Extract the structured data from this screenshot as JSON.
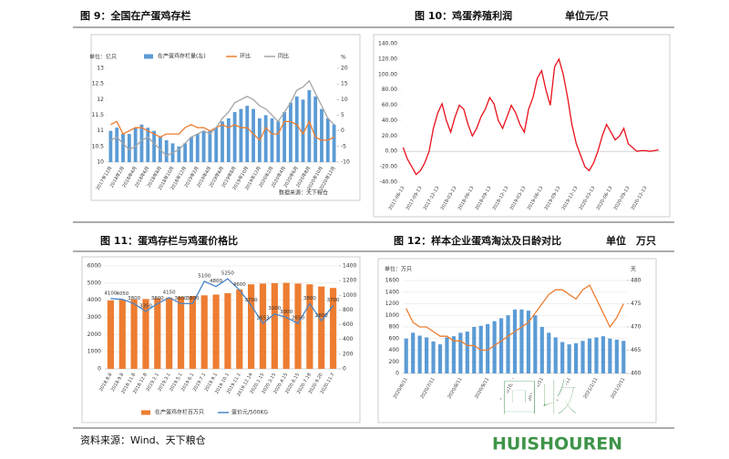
{
  "chart_data": [
    {
      "type": "combo",
      "title": "图 9：全国在产蛋鸡存栏",
      "y_unit": "单位：亿只",
      "y2_unit": "%",
      "note": "数据来源：天下粮仓",
      "legend": "top",
      "grid": false,
      "categories": [
        "2017年12月",
        null,
        "2018年2月",
        null,
        "2018年4月",
        null,
        "2018年6月",
        null,
        "2018年8月",
        null,
        "2018年10月",
        null,
        "2018年12月",
        null,
        "2019年2月",
        null,
        "2019年4月",
        null,
        "2019年6月",
        null,
        "2019年8月",
        null,
        "2019年10月",
        null,
        "2019年12月",
        null,
        "2020年2月",
        null,
        "2020年4月",
        null,
        "2020年6月",
        null,
        "2020年8月",
        null,
        "2020年10月",
        null,
        "2020年12月"
      ],
      "ylim": [
        10,
        13
      ],
      "yticks": [
        10,
        10.5,
        11,
        11.5,
        12,
        12.5,
        13
      ],
      "y2lim": [
        -10,
        20
      ],
      "y2ticks": [
        -10,
        -5,
        0,
        5,
        10,
        15,
        20
      ],
      "series": [
        {
          "name": "在产蛋鸡存栏量(左)",
          "type": "bar",
          "color": "#5b9bd5",
          "values": [
            11.0,
            11.1,
            10.9,
            10.9,
            11.1,
            11.2,
            11.1,
            11.0,
            10.8,
            10.7,
            10.6,
            10.5,
            10.6,
            10.8,
            10.9,
            11.0,
            11.0,
            11.1,
            11.3,
            11.4,
            11.6,
            11.7,
            11.8,
            11.7,
            11.4,
            11.5,
            11.4,
            11.3,
            11.6,
            11.9,
            12.1,
            12.0,
            12.3,
            12.1,
            11.7,
            11.4,
            11.2
          ]
        },
        {
          "name": "环比",
          "type": "line",
          "axis": "y2",
          "color": "#ed7d31",
          "values": [
            2,
            3,
            -1,
            0,
            1,
            1,
            0,
            -1,
            -2,
            -1,
            -1,
            -1,
            1,
            2,
            1,
            1,
            0,
            1,
            2,
            1,
            2,
            1,
            1,
            -1,
            -3,
            1,
            -1,
            -1,
            3,
            3,
            2,
            -1,
            3,
            -2,
            -3,
            -3,
            -2
          ]
        },
        {
          "name": "同比",
          "type": "line",
          "axis": "y2",
          "color": "#a5a5a5",
          "values": [
            -3,
            -2,
            -4,
            -6,
            -5,
            -3,
            -2,
            -4,
            -6,
            -8,
            -7,
            -6,
            -4,
            -2,
            -1,
            0,
            -1,
            1,
            4,
            6,
            9,
            10,
            11,
            10,
            8,
            7,
            5,
            3,
            6,
            9,
            13,
            14,
            16,
            12,
            8,
            4,
            2
          ]
        }
      ]
    },
    {
      "type": "line",
      "title": "图 10：鸡蛋养殖利润",
      "subtitle": "单位元/只",
      "grid": false,
      "categories": [
        "2017-06-13",
        null,
        null,
        null,
        "2017-09-13",
        null,
        null,
        null,
        "2017-12-13",
        null,
        null,
        null,
        "2018-03-13",
        null,
        null,
        null,
        "2018-06-13",
        null,
        null,
        null,
        "2018-09-13",
        null,
        null,
        null,
        "2018-12-13",
        null,
        null,
        null,
        "2019-03-13",
        null,
        null,
        null,
        "2019-06-13",
        null,
        null,
        null,
        "2019-09-13",
        null,
        null,
        null,
        "2019-12-13",
        null,
        null,
        null,
        "2020-03-13",
        null,
        null,
        null,
        "2020-06-13",
        null,
        null,
        null,
        "2020-09-13",
        null,
        null,
        null,
        "2020-12-13",
        null,
        null,
        null
      ],
      "ylim": [
        -40,
        140
      ],
      "yticks": [
        {
          "value": -40,
          "label": "-40.00"
        },
        {
          "value": -20,
          "label": "-20.00"
        },
        {
          "value": 0,
          "label": "0.00"
        },
        {
          "value": 20,
          "label": "20.00"
        },
        {
          "value": 40,
          "label": "40.00"
        },
        {
          "value": 60,
          "label": "60.00"
        },
        {
          "value": 80,
          "label": "80.00"
        },
        {
          "value": 100,
          "label": "100.00"
        },
        {
          "value": 120,
          "label": "120.00"
        },
        {
          "value": 140,
          "label": "140.00"
        }
      ],
      "series": [
        {
          "type": "line",
          "color": "#e8101a",
          "values": [
            5,
            -10,
            -20,
            -30,
            -25,
            -15,
            0,
            30,
            50,
            62,
            40,
            25,
            45,
            60,
            55,
            35,
            20,
            30,
            45,
            55,
            70,
            62,
            40,
            30,
            45,
            60,
            50,
            35,
            25,
            55,
            70,
            95,
            105,
            80,
            60,
            110,
            120,
            100,
            70,
            35,
            10,
            -5,
            -20,
            -25,
            -15,
            0,
            20,
            35,
            25,
            15,
            20,
            30,
            10,
            5,
            0,
            1,
            1,
            0,
            1,
            2
          ]
        }
      ]
    },
    {
      "type": "combo",
      "title": "图 11：蛋鸡存栏与鸡蛋价格比",
      "legend": "bottom",
      "grid": true,
      "categories": [
        "2018.8.8",
        "2018.9.8",
        "2018.11.8",
        "2018.12.8",
        "2019.2.1",
        "2019.3.1",
        "2019.5.1",
        "2019.6.1",
        "2019.7.1",
        "2019.9.1",
        "2019.10.1",
        "2019.11.1",
        "2019.12.14",
        "2020.1.15",
        "2020.3.15",
        "2020.4.15",
        "2020.6.15",
        "2020.7.18",
        "2020.9.20",
        "2020.11.7"
      ],
      "ylim": [
        0,
        6000
      ],
      "yticks": [
        0,
        1000,
        2000,
        3000,
        4000,
        5000,
        6000
      ],
      "y2lim": [
        0,
        1400
      ],
      "y2ticks": [
        0,
        200,
        400,
        600,
        800,
        1000,
        1200,
        1400
      ],
      "series": [
        {
          "name": "在产蛋鸡存栏百万只",
          "type": "bar",
          "axis": "y2",
          "color": "#ed7d31",
          "values": [
            930,
            940,
            945,
            950,
            960,
            970,
            980,
            990,
            1000,
            1010,
            1030,
            1080,
            1150,
            1160,
            1165,
            1170,
            1160,
            1150,
            1120,
            1100
          ]
        },
        {
          "name": "蛋价元/500KG",
          "type": "line",
          "color": "#4a86c8",
          "labels": true,
          "values": [
            4100,
            4050,
            3800,
            3350,
            3800,
            4150,
            3800,
            3800,
            5100,
            4800,
            5250,
            4600,
            3700,
            2653,
            3200,
            3000,
            2650,
            3800,
            2800,
            3700
          ]
        }
      ]
    },
    {
      "type": "combo",
      "title": "图 12：样本企业蛋鸡淘汰及日龄对比",
      "subtitle": "单位　万只",
      "y_unit": "单位：万只",
      "y2_unit": "天",
      "grid": true,
      "categories": [
        "2020/6/11",
        null,
        null,
        null,
        "2020/7/11",
        null,
        null,
        null,
        "2020/8/11",
        null,
        null,
        null,
        "2020/9/11",
        null,
        null,
        null,
        "2020/10/11",
        null,
        null,
        null,
        "2020/11/11",
        null,
        null,
        null,
        "2020/12/11",
        null,
        null,
        null,
        "2021/1/11",
        null,
        null,
        null,
        "2021/2/11"
      ],
      "ylim": [
        0,
        1600
      ],
      "yticks": [
        0,
        200,
        400,
        600,
        800,
        1000,
        1200,
        1400,
        1600
      ],
      "y2lim": [
        460,
        480
      ],
      "y2ticks": [
        460,
        465,
        470,
        475,
        480
      ],
      "series": [
        {
          "type": "bar",
          "color": "#5b9bd5",
          "values": [
            600,
            700,
            650,
            620,
            550,
            500,
            620,
            640,
            700,
            720,
            800,
            820,
            850,
            900,
            950,
            1000,
            1100,
            1100,
            1080,
            1000,
            800,
            700,
            620,
            540,
            500,
            520,
            560,
            600,
            620,
            640,
            600,
            580,
            560
          ]
        },
        {
          "type": "line",
          "axis": "y2",
          "color": "#ed7d31",
          "values": [
            474,
            471,
            470,
            470,
            469,
            468,
            468,
            467,
            467,
            466,
            466,
            465,
            465,
            466,
            467,
            468,
            469,
            470,
            471,
            473,
            475,
            477,
            478,
            478,
            477,
            476,
            478,
            479,
            476,
            473,
            470,
            472,
            475
          ]
        }
      ]
    }
  ],
  "footer": "资料来源：Wind、天下粮仓",
  "watermark": {
    "logo": "回收",
    "text": "HUISHOUREN"
  }
}
